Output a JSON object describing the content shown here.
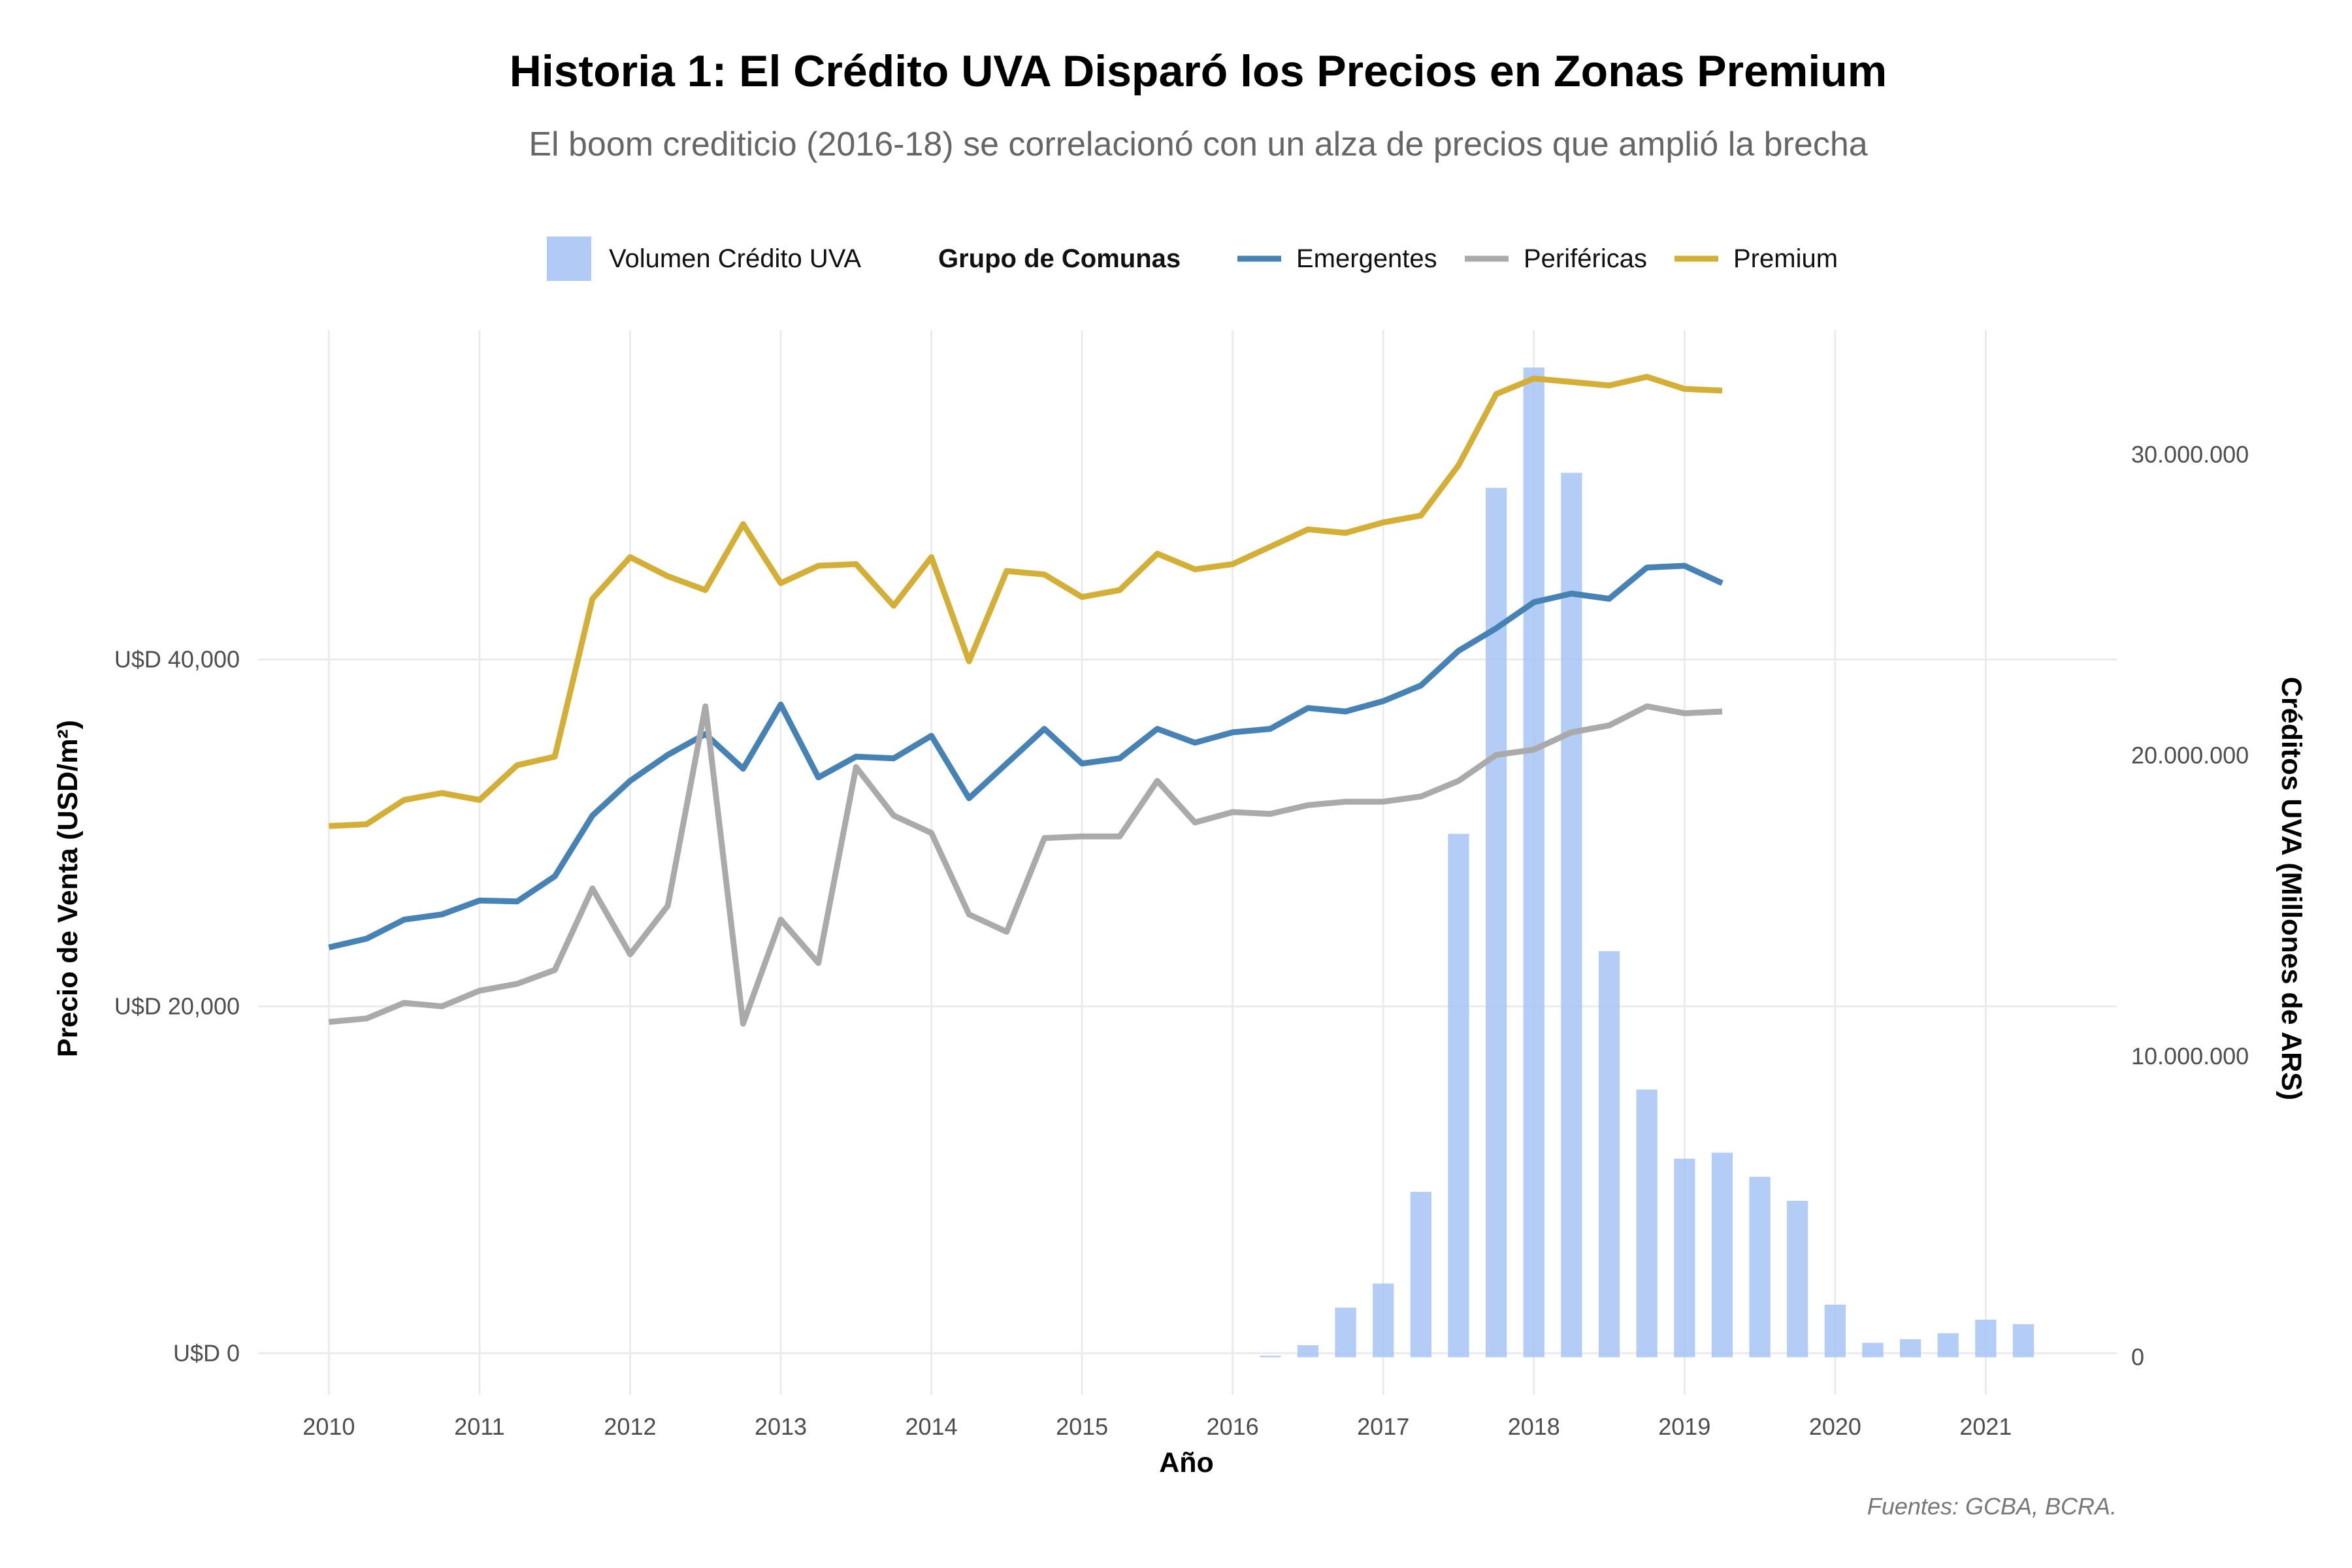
{
  "chart_data": {
    "type": "bar+line",
    "title": "Historia 1: El Crédito UVA Disparó los Precios en Zonas Premium",
    "subtitle": "El boom crediticio (2016-18) se correlacionó con un alza de precios que amplió la brecha",
    "caption": "Fuentes: GCBA, BCRA.",
    "xlabel": "Año",
    "ylabel_left": "Precio de Venta (USD/m²)",
    "ylabel_right": "Créditos UVA (Millones de ARS)",
    "x_ticks": [
      "2010",
      "2011",
      "2012",
      "2013",
      "2014",
      "2015",
      "2016",
      "2017",
      "2018",
      "2019",
      "2020",
      "2021"
    ],
    "y_left_ticks": [
      {
        "value": 0,
        "label": "U$D 0"
      },
      {
        "value": 20000,
        "label": "U$D 20,000"
      },
      {
        "value": 40000,
        "label": "U$D 40,000"
      }
    ],
    "y_right_ticks": [
      {
        "value": 0,
        "label": "0"
      },
      {
        "value": 10000000,
        "label": "10.000.000"
      },
      {
        "value": 20000000,
        "label": "20.000.000"
      },
      {
        "value": 30000000,
        "label": "30.000.000"
      }
    ],
    "xlim": [
      2009.53,
      2021.87
    ],
    "ylim_left": [
      -2400,
      59000
    ],
    "ylim_right": [
      -1250000,
      34150000
    ],
    "grid": true,
    "legend": {
      "placement": "top",
      "bar_label": "Volumen Crédito UVA",
      "group_title": "Grupo de Comunas"
    },
    "bars": {
      "name": "Volumen Crédito UVA",
      "color": "#a4c2f4",
      "x": [
        2016.25,
        2016.5,
        2016.75,
        2017.0,
        2017.25,
        2017.5,
        2017.75,
        2018.0,
        2018.25,
        2018.5,
        2018.75,
        2019.0,
        2019.25,
        2019.5,
        2019.75,
        2020.0,
        2020.25,
        2020.5,
        2020.75,
        2021.0,
        2021.25
      ],
      "values": [
        50000,
        400000,
        1650000,
        2450000,
        5500000,
        17400000,
        28900000,
        32900000,
        29400000,
        13500000,
        8900000,
        6600000,
        6800000,
        6000000,
        5200000,
        1750000,
        480000,
        600000,
        800000,
        1250000,
        1100000
      ]
    },
    "series": [
      {
        "name": "Emergentes",
        "color": "#4682b4",
        "x": [
          2010.0,
          2010.25,
          2010.5,
          2010.75,
          2011.0,
          2011.25,
          2011.5,
          2011.75,
          2012.0,
          2012.25,
          2012.5,
          2012.75,
          2013.0,
          2013.25,
          2013.5,
          2013.75,
          2014.0,
          2014.25,
          2014.5,
          2014.75,
          2015.0,
          2015.25,
          2015.5,
          2015.75,
          2016.0,
          2016.25,
          2016.5,
          2016.75,
          2017.0,
          2017.25,
          2017.5,
          2017.75,
          2018.0,
          2018.25,
          2018.5,
          2018.75,
          2019.0,
          2019.25
        ],
        "values": [
          23400,
          23900,
          25000,
          25300,
          26100,
          26050,
          27500,
          31000,
          33000,
          34500,
          35700,
          33700,
          37400,
          33200,
          34400,
          34300,
          35600,
          32000,
          34000,
          36000,
          34000,
          34300,
          36000,
          35200,
          35800,
          36000,
          37200,
          37000,
          37600,
          38500,
          40500,
          41800,
          43300,
          43800,
          43500,
          45300,
          45400,
          44400
        ]
      },
      {
        "name": "Periféricas",
        "color": "#aaaaaa",
        "x": [
          2010.0,
          2010.25,
          2010.5,
          2010.75,
          2011.0,
          2011.25,
          2011.5,
          2011.75,
          2012.0,
          2012.25,
          2012.5,
          2012.75,
          2013.0,
          2013.25,
          2013.5,
          2013.75,
          2014.0,
          2014.25,
          2014.5,
          2014.75,
          2015.0,
          2015.25,
          2015.5,
          2015.75,
          2016.0,
          2016.25,
          2016.5,
          2016.75,
          2017.0,
          2017.25,
          2017.5,
          2017.75,
          2018.0,
          2018.25,
          2018.5,
          2018.75,
          2019.0,
          2019.25
        ],
        "values": [
          19100,
          19300,
          20200,
          20000,
          20900,
          21300,
          22100,
          26800,
          23000,
          25800,
          37300,
          19000,
          25000,
          22500,
          33800,
          31000,
          30000,
          25300,
          24300,
          29700,
          29800,
          29800,
          33000,
          30600,
          31200,
          31100,
          31600,
          31800,
          31800,
          32100,
          33000,
          34500,
          34800,
          35800,
          36200,
          37300,
          36900,
          37000
        ]
      },
      {
        "name": "Premium",
        "color": "#d4af37",
        "x": [
          2010.0,
          2010.25,
          2010.5,
          2010.75,
          2011.0,
          2011.25,
          2011.5,
          2011.75,
          2012.0,
          2012.25,
          2012.5,
          2012.75,
          2013.0,
          2013.25,
          2013.5,
          2013.75,
          2014.0,
          2014.25,
          2014.5,
          2014.75,
          2015.0,
          2015.25,
          2015.5,
          2015.75,
          2016.0,
          2016.25,
          2016.5,
          2016.75,
          2017.0,
          2017.25,
          2017.5,
          2017.75,
          2018.0,
          2018.25,
          2018.5,
          2018.75,
          2019.0,
          2019.25
        ],
        "values": [
          30400,
          30500,
          31900,
          32300,
          31900,
          33900,
          34400,
          43500,
          45900,
          44800,
          44000,
          47800,
          44400,
          45400,
          45500,
          43100,
          45900,
          39900,
          45100,
          44900,
          43600,
          44000,
          46100,
          45200,
          45500,
          46500,
          47500,
          47300,
          47900,
          48300,
          51200,
          55300,
          56200,
          56000,
          55800,
          56300,
          55600,
          55500
        ]
      }
    ]
  }
}
